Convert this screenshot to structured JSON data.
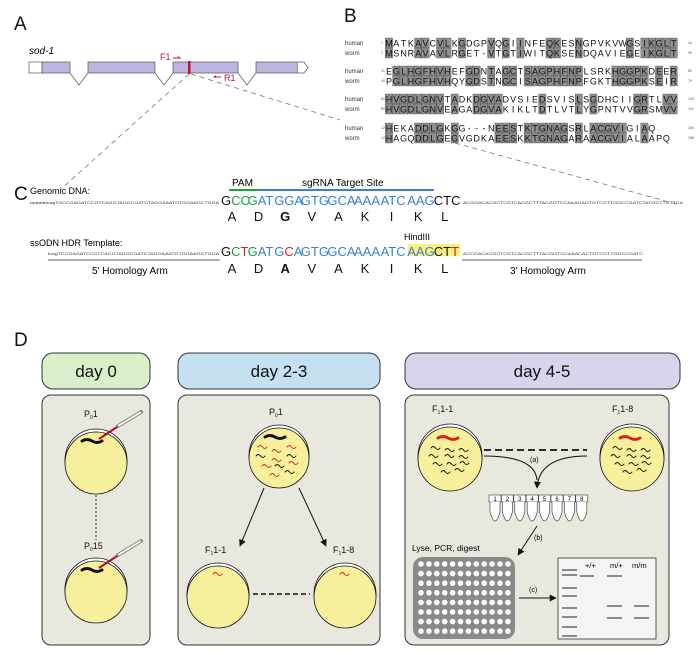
{
  "panels": {
    "a": "A",
    "b": "B",
    "c": "C",
    "d": "D"
  },
  "panel_a": {
    "gene": "sod-1",
    "primer_f": "F1",
    "primer_r": "R1"
  },
  "panel_b": {
    "rows": [
      {
        "human": "MATKAVCVLKGDGPVQGIINFEQKESNGPVKVWGSIKGLT",
        "worm": "MSNRAVAVLRGET-VTGTIWITQKSENDQAVIEGEIKGLT",
        "h_start": "1",
        "h_end": "40",
        "w_start": "1",
        "w_end": "39"
      },
      {
        "human": "EGLHGFHVHEFGDNTAGCTSAGPHFNPLSRKHGGPKDEER",
        "worm": "PGLHGFHVHQYGDSTNGCISAGPHFNPFGKTHGGPKSEIR",
        "h_start": "41",
        "h_end": "80",
        "w_start": "40",
        "w_end": "79"
      },
      {
        "human": "HVGDLGNVTADKDGVADVSIEDSVISLSGDHCIIGRTLVV",
        "worm": "HVGDLGNVEAGADGVAKIKLTDTLVTLYGPNTVVGRSMVV",
        "h_start": "81",
        "h_end": "120",
        "w_start": "80",
        "w_end": "119"
      },
      {
        "human": "HEKADDLGKGG---NEESTKTGNAGSRLACGVIGIAQ",
        "worm": "HAGQDDLGEGVGDKAEESKKTGNAGARAACGVIALAAPQ",
        "h_start": "121",
        "h_end": "154",
        "w_start": "120",
        "w_end": "158"
      }
    ],
    "species": {
      "human": "human",
      "worm": "worm"
    },
    "highlight": {
      "row": 2,
      "index": 14
    }
  },
  "panel_c": {
    "genomic_label": "Genomic DNA:",
    "genomic_left": "taatattttcagTGCCGAGATCCGTCAGGTAGGCGATCTAGGAAATGTGGAAGCTGGA",
    "genomic_right": "ACGGACACGCTCGTCACGCTTTACGGTCCAAAGAGTGTCGTTGGCCGATCTATGGTTGTTCA",
    "pam_label": "PAM",
    "sgrna_label": "sgRNA Target Site",
    "genomic_codons": [
      [
        [
          "G",
          "#111"
        ],
        [
          "CC",
          "#1aa33a"
        ]
      ],
      [
        [
          "G",
          "#1aa33a"
        ],
        [
          "AT",
          "#3a7fd5"
        ]
      ],
      [
        [
          "GGA",
          "#3a7fd5"
        ]
      ],
      [
        [
          "GTG",
          "#3a7fd5"
        ]
      ],
      [
        [
          "GCA",
          "#3a7fd5"
        ]
      ],
      [
        [
          "AAA",
          "#3a7fd5"
        ]
      ],
      [
        [
          "ATC",
          "#3a7fd5"
        ]
      ],
      [
        [
          "AAG",
          "#3a7fd5"
        ]
      ],
      [
        [
          "CTC",
          "#111"
        ]
      ]
    ],
    "genomic_aa": [
      "A",
      "D",
      "G",
      "V",
      "A",
      "K",
      "I",
      "K",
      "L"
    ],
    "ssodn_label": "ssODN HDR Template:",
    "ssodn_left": "tcagTCCGAGATCCGTCACGTAGGCGATCTAGGAAATGTGGAAGCTGGA",
    "ssodn_right": "ACCGACACGCTCGTCACGCTTTACGGTCCAAACACTGTCGTTGGCCGATC",
    "ssodn_codons": [
      [
        [
          "G",
          "#111"
        ],
        [
          "C",
          "#1aa33a"
        ],
        [
          "T",
          "#e02020"
        ]
      ],
      [
        [
          "G",
          "#1aa33a"
        ],
        [
          "AT",
          "#3a7fd5"
        ]
      ],
      [
        [
          "G",
          "#3a7fd5"
        ],
        [
          "C",
          "#e02020"
        ],
        [
          "A",
          "#3a7fd5"
        ]
      ],
      [
        [
          "GTG",
          "#3a7fd5"
        ]
      ],
      [
        [
          "GCA",
          "#3a7fd5"
        ]
      ],
      [
        [
          "AAA",
          "#3a7fd5"
        ]
      ],
      [
        [
          "ATC",
          "#3a7fd5"
        ]
      ],
      [
        [
          "AAG",
          "#3a7fd5"
        ]
      ],
      [
        [
          "CT",
          "#111"
        ],
        [
          "T",
          "#e02020"
        ]
      ]
    ],
    "ssodn_aa": [
      "A",
      "D",
      "A",
      "V",
      "A",
      "K",
      "I",
      "K",
      "L"
    ],
    "hindiii_label": "HindIII",
    "arm5": "5' Homology Arm",
    "arm3": "3' Homology Arm"
  },
  "panel_d": {
    "day0": {
      "title": "day 0",
      "p_first": "1",
      "p_last": "15",
      "p": "P",
      "sub": "0"
    },
    "day23": {
      "title": "day 2-3",
      "parent": "1",
      "f1_first": "1-1",
      "f1_last": "1-8",
      "p": "P",
      "f": "F",
      "sub0": "0",
      "sub1": "1"
    },
    "day45": {
      "title": "day 4-5",
      "f1_first": "1-1",
      "f1_last": "1-8",
      "f": "F",
      "sub1": "1",
      "step_a": "(a)",
      "step_b": "(b)",
      "step_c": "(c)",
      "lyse": "Lyse, PCR, digest",
      "tubes": [
        "1",
        "2",
        "3",
        "4",
        "5",
        "6",
        "7",
        "8"
      ],
      "gel_lanes": [
        "+/+",
        "m/+",
        "m/m"
      ]
    },
    "colors": {
      "day0": "#d9efc9",
      "day23": "#c5e0f0",
      "day45": "#d9d3ec",
      "panel": "#e9e8df",
      "plate": "#f6f09c",
      "exon": "#bdb5e0",
      "mutant": "#e02020"
    }
  }
}
